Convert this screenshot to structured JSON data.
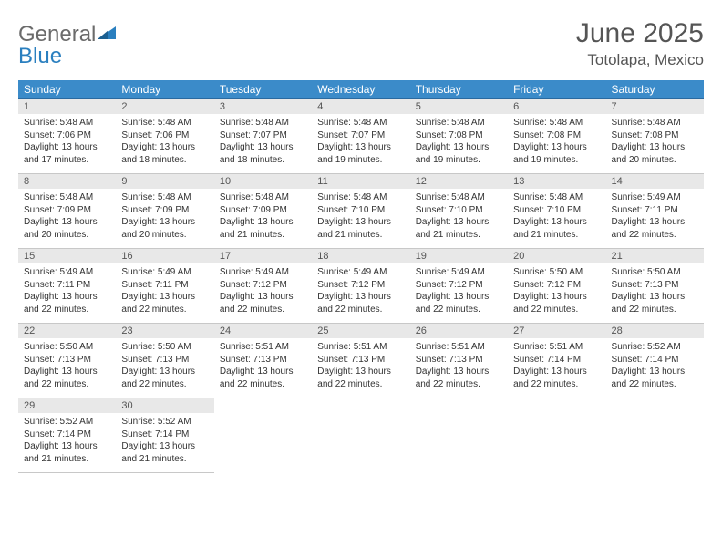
{
  "logo": {
    "part1": "General",
    "part2": "Blue"
  },
  "title": "June 2025",
  "location": "Totolapa, Mexico",
  "dayHeaders": [
    "Sunday",
    "Monday",
    "Tuesday",
    "Wednesday",
    "Thursday",
    "Friday",
    "Saturday"
  ],
  "colors": {
    "headerBg": "#3b8bc9",
    "rowTopBorder": "#2a6aa0",
    "dayNumBg": "#e8e8e8",
    "logoBlue": "#2a7fbf",
    "logoGray": "#6b6b6b"
  },
  "weeks": [
    [
      {
        "n": "1",
        "sr": "5:48 AM",
        "ss": "7:06 PM",
        "dl": "13 hours and 17 minutes."
      },
      {
        "n": "2",
        "sr": "5:48 AM",
        "ss": "7:06 PM",
        "dl": "13 hours and 18 minutes."
      },
      {
        "n": "3",
        "sr": "5:48 AM",
        "ss": "7:07 PM",
        "dl": "13 hours and 18 minutes."
      },
      {
        "n": "4",
        "sr": "5:48 AM",
        "ss": "7:07 PM",
        "dl": "13 hours and 19 minutes."
      },
      {
        "n": "5",
        "sr": "5:48 AM",
        "ss": "7:08 PM",
        "dl": "13 hours and 19 minutes."
      },
      {
        "n": "6",
        "sr": "5:48 AM",
        "ss": "7:08 PM",
        "dl": "13 hours and 19 minutes."
      },
      {
        "n": "7",
        "sr": "5:48 AM",
        "ss": "7:08 PM",
        "dl": "13 hours and 20 minutes."
      }
    ],
    [
      {
        "n": "8",
        "sr": "5:48 AM",
        "ss": "7:09 PM",
        "dl": "13 hours and 20 minutes."
      },
      {
        "n": "9",
        "sr": "5:48 AM",
        "ss": "7:09 PM",
        "dl": "13 hours and 20 minutes."
      },
      {
        "n": "10",
        "sr": "5:48 AM",
        "ss": "7:09 PM",
        "dl": "13 hours and 21 minutes."
      },
      {
        "n": "11",
        "sr": "5:48 AM",
        "ss": "7:10 PM",
        "dl": "13 hours and 21 minutes."
      },
      {
        "n": "12",
        "sr": "5:48 AM",
        "ss": "7:10 PM",
        "dl": "13 hours and 21 minutes."
      },
      {
        "n": "13",
        "sr": "5:48 AM",
        "ss": "7:10 PM",
        "dl": "13 hours and 21 minutes."
      },
      {
        "n": "14",
        "sr": "5:49 AM",
        "ss": "7:11 PM",
        "dl": "13 hours and 22 minutes."
      }
    ],
    [
      {
        "n": "15",
        "sr": "5:49 AM",
        "ss": "7:11 PM",
        "dl": "13 hours and 22 minutes."
      },
      {
        "n": "16",
        "sr": "5:49 AM",
        "ss": "7:11 PM",
        "dl": "13 hours and 22 minutes."
      },
      {
        "n": "17",
        "sr": "5:49 AM",
        "ss": "7:12 PM",
        "dl": "13 hours and 22 minutes."
      },
      {
        "n": "18",
        "sr": "5:49 AM",
        "ss": "7:12 PM",
        "dl": "13 hours and 22 minutes."
      },
      {
        "n": "19",
        "sr": "5:49 AM",
        "ss": "7:12 PM",
        "dl": "13 hours and 22 minutes."
      },
      {
        "n": "20",
        "sr": "5:50 AM",
        "ss": "7:12 PM",
        "dl": "13 hours and 22 minutes."
      },
      {
        "n": "21",
        "sr": "5:50 AM",
        "ss": "7:13 PM",
        "dl": "13 hours and 22 minutes."
      }
    ],
    [
      {
        "n": "22",
        "sr": "5:50 AM",
        "ss": "7:13 PM",
        "dl": "13 hours and 22 minutes."
      },
      {
        "n": "23",
        "sr": "5:50 AM",
        "ss": "7:13 PM",
        "dl": "13 hours and 22 minutes."
      },
      {
        "n": "24",
        "sr": "5:51 AM",
        "ss": "7:13 PM",
        "dl": "13 hours and 22 minutes."
      },
      {
        "n": "25",
        "sr": "5:51 AM",
        "ss": "7:13 PM",
        "dl": "13 hours and 22 minutes."
      },
      {
        "n": "26",
        "sr": "5:51 AM",
        "ss": "7:13 PM",
        "dl": "13 hours and 22 minutes."
      },
      {
        "n": "27",
        "sr": "5:51 AM",
        "ss": "7:14 PM",
        "dl": "13 hours and 22 minutes."
      },
      {
        "n": "28",
        "sr": "5:52 AM",
        "ss": "7:14 PM",
        "dl": "13 hours and 22 minutes."
      }
    ],
    [
      {
        "n": "29",
        "sr": "5:52 AM",
        "ss": "7:14 PM",
        "dl": "13 hours and 21 minutes."
      },
      {
        "n": "30",
        "sr": "5:52 AM",
        "ss": "7:14 PM",
        "dl": "13 hours and 21 minutes."
      },
      null,
      null,
      null,
      null,
      null
    ]
  ],
  "labels": {
    "sunrise": "Sunrise: ",
    "sunset": "Sunset: ",
    "daylight": "Daylight: "
  }
}
